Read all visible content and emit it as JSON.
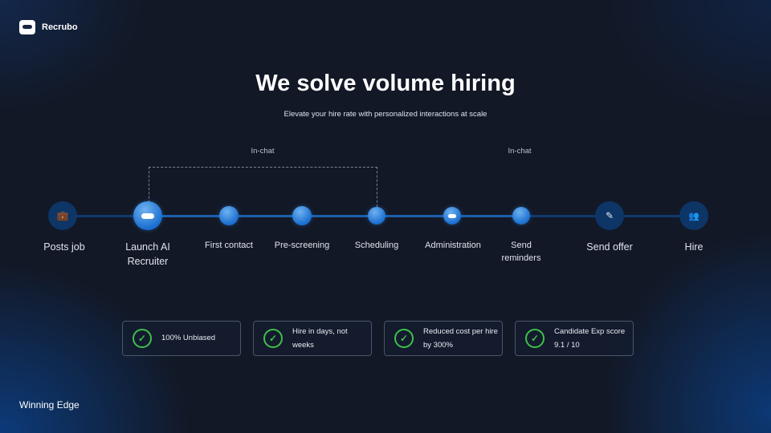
{
  "brand": {
    "name": "Recrubo",
    "icon": "robot-chat-icon"
  },
  "header": {
    "title": "We solve volume hiring",
    "subtitle": "Elevate your hire rate with personalized interactions at scale"
  },
  "annotations": [
    "In-chat",
    "In-chat"
  ],
  "steps": [
    {
      "label": "Posts job",
      "icon": "briefcase-icon"
    },
    {
      "label": "Launch AI Recruiter",
      "icon": "robot-icon"
    },
    {
      "label": "First contact"
    },
    {
      "label": "Pre-screening"
    },
    {
      "label": "Scheduling"
    },
    {
      "label": "Administration",
      "icon": "robot-icon"
    },
    {
      "label": "Send reminders"
    },
    {
      "label": "Send offer",
      "icon": "pencil-icon"
    },
    {
      "label": "Hire",
      "icon": "team-icon"
    }
  ],
  "benefits": [
    "100% Unbiased",
    "Hire in days, not weeks",
    "Reduced cost per hire by 300%",
    "Candidate Exp score 9.1 / 10"
  ],
  "footer": "Winning Edge",
  "colors": {
    "background": "#121826",
    "accent": "#1a6fd0",
    "check": "#3fc04a"
  }
}
